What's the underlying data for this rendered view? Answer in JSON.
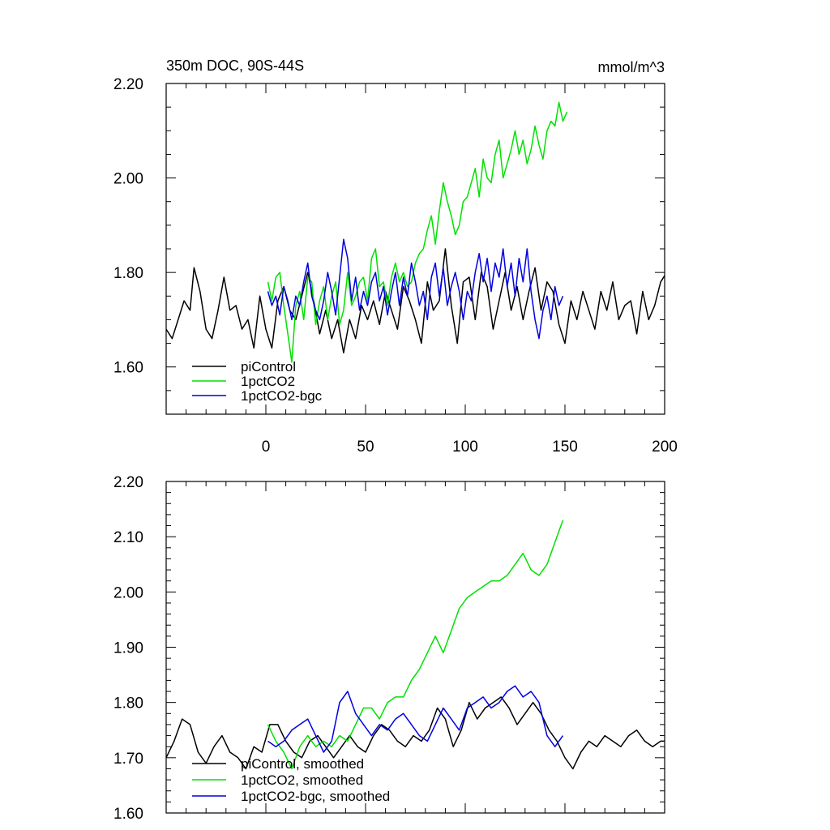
{
  "chart_data": [
    {
      "type": "line",
      "title": "350m DOC, 90S-44S",
      "units": "mmol/m^3",
      "xlim": [
        -50,
        200
      ],
      "ylim": [
        1.5,
        2.2
      ],
      "xticks": [
        "0",
        "50",
        "100",
        "150",
        "200"
      ],
      "yticks": [
        "1.60",
        "1.80",
        "2.00",
        "2.20"
      ],
      "grid": false,
      "legend_position": "bottom-left",
      "series": [
        {
          "name": "piControl",
          "color": "#000000",
          "x": [
            -50,
            -47,
            -44,
            -41,
            -38,
            -36,
            -33,
            -30,
            -27,
            -24,
            -21,
            -18,
            -15,
            -12,
            -9,
            -6,
            -3,
            0,
            3,
            6,
            9,
            12,
            15,
            18,
            21,
            24,
            27,
            30,
            33,
            36,
            39,
            42,
            45,
            48,
            51,
            54,
            57,
            60,
            63,
            66,
            69,
            72,
            75,
            78,
            81,
            84,
            87,
            90,
            93,
            96,
            99,
            102,
            105,
            108,
            111,
            114,
            117,
            120,
            123,
            126,
            129,
            132,
            135,
            138,
            141,
            144,
            147,
            150,
            153,
            156,
            159,
            162,
            165,
            168,
            171,
            174,
            177,
            180,
            183,
            186,
            189,
            192,
            195,
            198,
            201
          ],
          "y": [
            1.68,
            1.66,
            1.7,
            1.74,
            1.72,
            1.81,
            1.76,
            1.68,
            1.66,
            1.72,
            1.79,
            1.72,
            1.73,
            1.68,
            1.7,
            1.64,
            1.75,
            1.68,
            1.64,
            1.74,
            1.77,
            1.72,
            1.7,
            1.75,
            1.8,
            1.74,
            1.67,
            1.72,
            1.66,
            1.7,
            1.63,
            1.7,
            1.66,
            1.73,
            1.7,
            1.74,
            1.69,
            1.76,
            1.72,
            1.68,
            1.77,
            1.74,
            1.7,
            1.65,
            1.78,
            1.72,
            1.74,
            1.85,
            1.73,
            1.65,
            1.78,
            1.79,
            1.7,
            1.8,
            1.77,
            1.68,
            1.74,
            1.8,
            1.72,
            1.77,
            1.7,
            1.76,
            1.81,
            1.72,
            1.78,
            1.76,
            1.69,
            1.65,
            1.74,
            1.7,
            1.76,
            1.72,
            1.68,
            1.76,
            1.72,
            1.78,
            1.7,
            1.73,
            1.74,
            1.67,
            1.76,
            1.7,
            1.73,
            1.78,
            1.8
          ]
        },
        {
          "name": "1pctCO2",
          "color": "#00e000",
          "x": [
            1,
            3,
            5,
            7,
            9,
            11,
            13,
            15,
            17,
            19,
            21,
            23,
            25,
            27,
            29,
            31,
            33,
            35,
            37,
            39,
            41,
            43,
            45,
            47,
            49,
            51,
            53,
            55,
            57,
            59,
            61,
            63,
            65,
            67,
            69,
            71,
            73,
            75,
            77,
            79,
            81,
            83,
            85,
            87,
            89,
            91,
            93,
            95,
            97,
            99,
            101,
            103,
            105,
            107,
            109,
            111,
            113,
            115,
            117,
            119,
            121,
            123,
            125,
            127,
            129,
            131,
            133,
            135,
            137,
            139,
            141,
            143,
            145,
            147,
            149,
            151
          ],
          "y": [
            1.78,
            1.74,
            1.79,
            1.8,
            1.73,
            1.67,
            1.61,
            1.73,
            1.76,
            1.7,
            1.79,
            1.78,
            1.69,
            1.74,
            1.77,
            1.7,
            1.75,
            1.78,
            1.69,
            1.72,
            1.8,
            1.73,
            1.75,
            1.78,
            1.79,
            1.74,
            1.83,
            1.85,
            1.77,
            1.78,
            1.73,
            1.79,
            1.82,
            1.78,
            1.8,
            1.77,
            1.78,
            1.82,
            1.84,
            1.85,
            1.89,
            1.92,
            1.86,
            1.93,
            1.99,
            1.95,
            1.92,
            1.88,
            1.9,
            1.95,
            1.96,
            1.99,
            2.02,
            1.96,
            2.04,
            2.0,
            1.99,
            2.05,
            2.08,
            2.0,
            2.03,
            2.06,
            2.1,
            2.05,
            2.08,
            2.03,
            2.06,
            2.11,
            2.07,
            2.04,
            2.1,
            2.12,
            2.11,
            2.16,
            2.12,
            2.14
          ]
        },
        {
          "name": "1pctCO2-bgc",
          "color": "#0000e0",
          "x": [
            1,
            3,
            5,
            7,
            9,
            11,
            13,
            15,
            17,
            19,
            21,
            23,
            25,
            27,
            29,
            31,
            33,
            35,
            37,
            39,
            41,
            43,
            45,
            47,
            49,
            51,
            53,
            55,
            57,
            59,
            61,
            63,
            65,
            67,
            69,
            71,
            73,
            75,
            77,
            79,
            81,
            83,
            85,
            87,
            89,
            91,
            93,
            95,
            97,
            99,
            101,
            103,
            105,
            107,
            109,
            111,
            113,
            115,
            117,
            119,
            121,
            123,
            125,
            127,
            129,
            131,
            133,
            135,
            137,
            139,
            141,
            143,
            145,
            147,
            149
          ],
          "y": [
            1.76,
            1.73,
            1.75,
            1.71,
            1.77,
            1.74,
            1.7,
            1.75,
            1.73,
            1.78,
            1.82,
            1.75,
            1.72,
            1.7,
            1.74,
            1.8,
            1.76,
            1.71,
            1.79,
            1.87,
            1.83,
            1.74,
            1.79,
            1.72,
            1.76,
            1.73,
            1.78,
            1.8,
            1.74,
            1.77,
            1.71,
            1.76,
            1.8,
            1.73,
            1.79,
            1.75,
            1.82,
            1.78,
            1.73,
            1.76,
            1.7,
            1.79,
            1.82,
            1.75,
            1.81,
            1.73,
            1.77,
            1.8,
            1.76,
            1.7,
            1.76,
            1.74,
            1.8,
            1.84,
            1.78,
            1.83,
            1.76,
            1.82,
            1.79,
            1.85,
            1.77,
            1.82,
            1.75,
            1.83,
            1.78,
            1.85,
            1.76,
            1.7,
            1.66,
            1.72,
            1.75,
            1.7,
            1.77,
            1.73,
            1.75
          ]
        }
      ]
    },
    {
      "type": "line",
      "title": "",
      "xlim": [
        -50,
        200
      ],
      "ylim": [
        1.6,
        2.2
      ],
      "yticks": [
        "1.60",
        "1.70",
        "1.80",
        "1.90",
        "2.00",
        "2.10",
        "2.20"
      ],
      "grid": false,
      "legend_position": "bottom-left",
      "series": [
        {
          "name": "piControl, smoothed",
          "color": "#000000",
          "x": [
            -50,
            -46,
            -42,
            -38,
            -34,
            -30,
            -26,
            -22,
            -18,
            -14,
            -10,
            -6,
            -2,
            2,
            6,
            10,
            14,
            18,
            22,
            26,
            30,
            34,
            38,
            42,
            46,
            50,
            54,
            58,
            62,
            66,
            70,
            74,
            78,
            82,
            86,
            90,
            94,
            98,
            102,
            106,
            110,
            114,
            118,
            122,
            126,
            130,
            134,
            138,
            142,
            146,
            150,
            154,
            158,
            162,
            166,
            170,
            174,
            178,
            182,
            186,
            190,
            194,
            198,
            201
          ],
          "y": [
            1.7,
            1.73,
            1.77,
            1.76,
            1.71,
            1.69,
            1.72,
            1.74,
            1.71,
            1.7,
            1.68,
            1.72,
            1.71,
            1.76,
            1.76,
            1.73,
            1.71,
            1.7,
            1.73,
            1.74,
            1.72,
            1.7,
            1.72,
            1.74,
            1.72,
            1.71,
            1.74,
            1.76,
            1.75,
            1.73,
            1.72,
            1.74,
            1.73,
            1.75,
            1.79,
            1.77,
            1.72,
            1.75,
            1.8,
            1.77,
            1.79,
            1.8,
            1.81,
            1.79,
            1.76,
            1.78,
            1.8,
            1.78,
            1.75,
            1.73,
            1.7,
            1.68,
            1.71,
            1.73,
            1.72,
            1.74,
            1.73,
            1.72,
            1.74,
            1.75,
            1.73,
            1.72,
            1.73,
            1.73
          ]
        },
        {
          "name": "1pctCO2, smoothed",
          "color": "#00e000",
          "x": [
            1,
            5,
            9,
            13,
            17,
            21,
            25,
            29,
            33,
            37,
            41,
            45,
            49,
            53,
            57,
            61,
            65,
            69,
            73,
            77,
            81,
            85,
            89,
            93,
            97,
            101,
            105,
            109,
            113,
            117,
            121,
            125,
            129,
            133,
            137,
            141,
            145,
            149
          ],
          "y": [
            1.76,
            1.73,
            1.71,
            1.68,
            1.72,
            1.74,
            1.72,
            1.73,
            1.72,
            1.74,
            1.73,
            1.76,
            1.79,
            1.79,
            1.77,
            1.8,
            1.81,
            1.81,
            1.84,
            1.86,
            1.89,
            1.92,
            1.89,
            1.93,
            1.97,
            1.99,
            2.0,
            2.01,
            2.02,
            2.02,
            2.03,
            2.05,
            2.07,
            2.04,
            2.03,
            2.05,
            2.09,
            2.13
          ]
        },
        {
          "name": "1pctCO2-bgc, smoothed",
          "color": "#0000e0",
          "x": [
            1,
            5,
            9,
            13,
            17,
            21,
            25,
            29,
            33,
            37,
            41,
            45,
            49,
            53,
            57,
            61,
            65,
            69,
            73,
            77,
            81,
            85,
            89,
            93,
            97,
            101,
            105,
            109,
            113,
            117,
            121,
            125,
            129,
            133,
            137,
            141,
            145,
            149
          ],
          "y": [
            1.73,
            1.72,
            1.73,
            1.75,
            1.76,
            1.77,
            1.74,
            1.71,
            1.73,
            1.8,
            1.82,
            1.78,
            1.76,
            1.74,
            1.76,
            1.75,
            1.77,
            1.78,
            1.76,
            1.74,
            1.73,
            1.76,
            1.79,
            1.77,
            1.75,
            1.79,
            1.8,
            1.81,
            1.79,
            1.8,
            1.82,
            1.83,
            1.81,
            1.82,
            1.8,
            1.74,
            1.72,
            1.74
          ]
        }
      ]
    }
  ]
}
